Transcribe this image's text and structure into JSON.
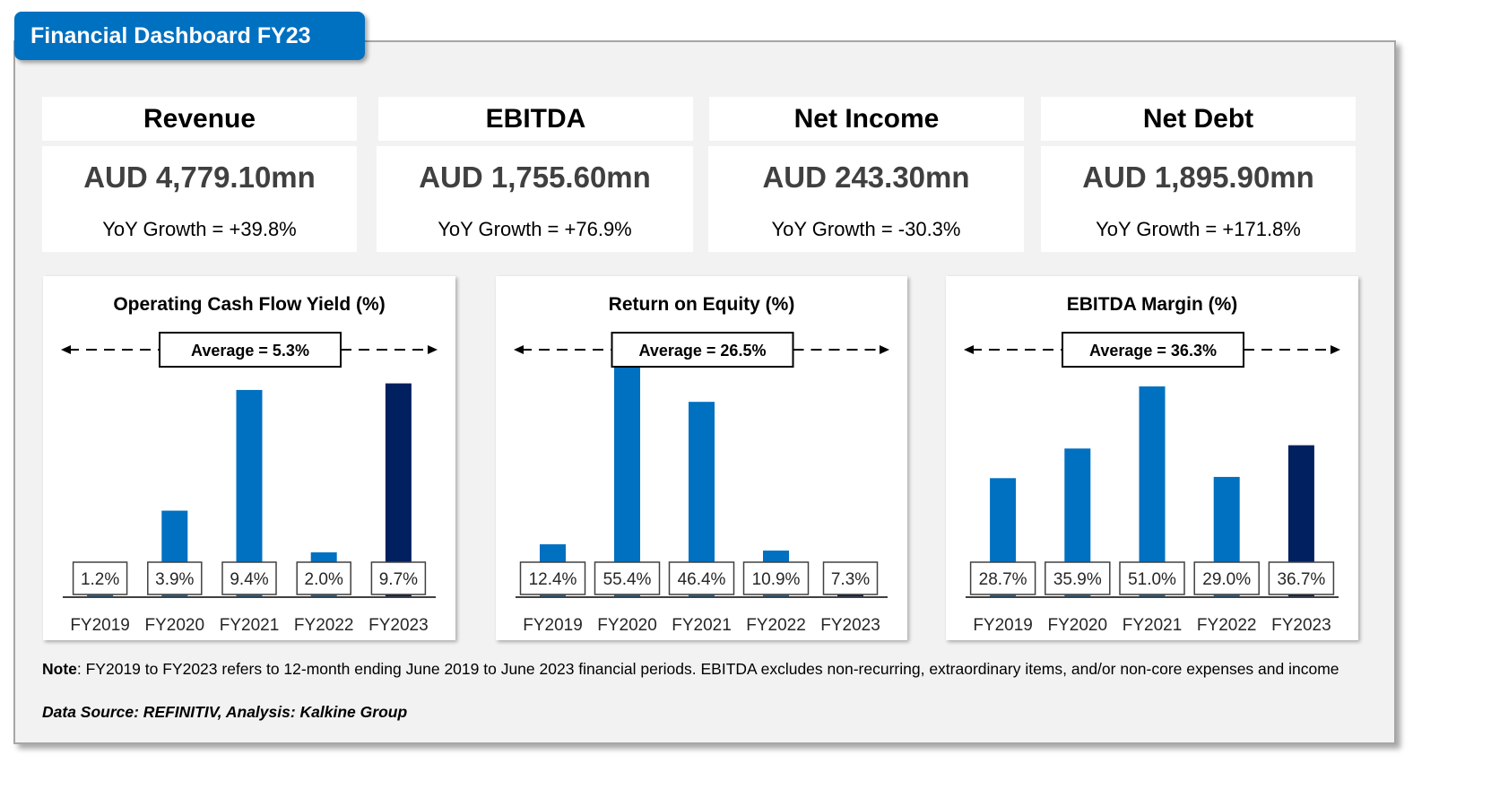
{
  "header": {
    "title": "Financial Dashboard FY23"
  },
  "kpis": [
    {
      "label": "Revenue",
      "value": "AUD 4,779.10mn",
      "growth": "YoY Growth = +39.8%"
    },
    {
      "label": "EBITDA",
      "value": "AUD 1,755.60mn",
      "growth": "YoY Growth = +76.9%"
    },
    {
      "label": "Net Income",
      "value": "AUD 243.30mn",
      "growth": "YoY Growth = -30.3%"
    },
    {
      "label": "Net Debt",
      "value": "AUD 1,895.90mn",
      "growth": "YoY Growth = +171.8%"
    }
  ],
  "colors": {
    "brand": "#0070c0",
    "bar": "#0070c0",
    "bar_highlight": "#002060",
    "panel_bg": "#f2f2f2"
  },
  "chart_data": [
    {
      "type": "bar",
      "title": "Operating Cash Flow Yield (%)",
      "categories": [
        "FY2019",
        "FY2020",
        "FY2021",
        "FY2022",
        "FY2023"
      ],
      "values": [
        1.2,
        3.9,
        9.4,
        2.0,
        9.7
      ],
      "data_labels": [
        "1.2%",
        "3.9%",
        "9.4%",
        "2.0%",
        "9.7%"
      ],
      "average_label": "Average = 5.3%",
      "average": 5.3,
      "highlight_index": 4,
      "xlabel": "",
      "ylabel": "",
      "ylim": [
        0,
        10.5
      ],
      "grid": false,
      "legend": "none"
    },
    {
      "type": "bar",
      "title": "Return on Equity (%)",
      "categories": [
        "FY2019",
        "FY2020",
        "FY2021",
        "FY2022",
        "FY2023"
      ],
      "values": [
        12.4,
        55.4,
        46.4,
        10.9,
        7.3
      ],
      "data_labels": [
        "12.4%",
        "55.4%",
        "46.4%",
        "10.9%",
        "7.3%"
      ],
      "average_label": "Average = 26.5%",
      "average": 26.5,
      "highlight_index": 4,
      "xlabel": "",
      "ylabel": "",
      "ylim": [
        0,
        55
      ],
      "grid": false,
      "legend": "none"
    },
    {
      "type": "bar",
      "title": "EBITDA Margin (%)",
      "categories": [
        "FY2019",
        "FY2020",
        "FY2021",
        "FY2022",
        "FY2023"
      ],
      "values": [
        28.7,
        35.9,
        51.0,
        29.0,
        36.7
      ],
      "data_labels": [
        "28.7%",
        "35.9%",
        "51.0%",
        "29.0%",
        "36.7%"
      ],
      "average_label": "Average = 36.3%",
      "average": 36.3,
      "highlight_index": 4,
      "xlabel": "",
      "ylabel": "",
      "ylim": [
        0,
        56
      ],
      "grid": false,
      "legend": "none"
    }
  ],
  "footer": {
    "note_label": "Note",
    "note_text": ": FY2019 to FY2023 refers to 12-month ending June 2019 to June 2023 financial periods. EBITDA excludes non-recurring, extraordinary items, and/or non-core expenses and income",
    "source": "Data Source: REFINITIV, Analysis: Kalkine Group"
  }
}
